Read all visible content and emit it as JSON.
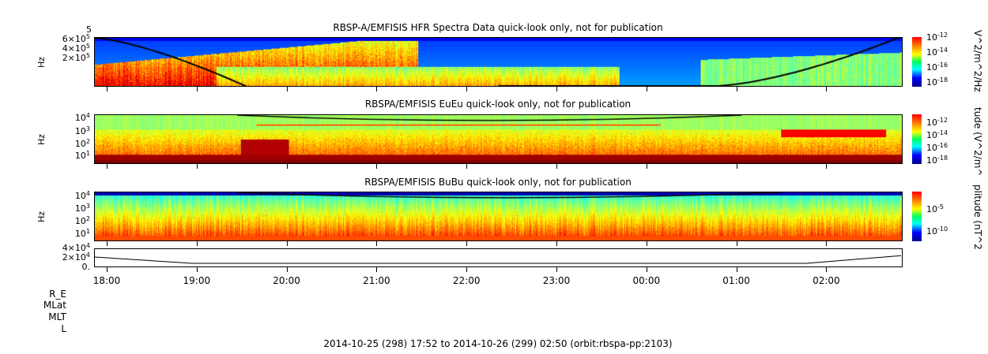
{
  "chart_data": [
    {
      "type": "heatmap",
      "title": "RBSP-A/EMFISIS  HFR Spectra Data quick-look only, not for publication",
      "ylabel": "Hz",
      "y_ticks": [
        "6×10^5",
        "4×10^5",
        "2×10^5"
      ],
      "y_top_tick": "5",
      "colorbar_label": "V^2/m^2/Hz",
      "colorbar_ticks": [
        "10^-12",
        "10^-14",
        "10^-16",
        "10^-18"
      ],
      "colormap": "jet"
    },
    {
      "type": "heatmap",
      "title": "RBSPA/EMFISIS  EuEu quick-look only, not for publication",
      "ylabel": "Hz",
      "y_ticks": [
        "10^4",
        "10^3",
        "10^2",
        "10^1"
      ],
      "colorbar_label": "tude (V^2/m^",
      "colorbar_ticks": [
        "10^-12",
        "10^-14",
        "10^-16",
        "10^-18"
      ],
      "colormap": "jet"
    },
    {
      "type": "heatmap",
      "title": "RBSPA/EMFISIS  BuBu quick-look only, not for publication",
      "ylabel": "Hz",
      "y_ticks": [
        "10^4",
        "10^3",
        "10^2",
        "10^1"
      ],
      "colorbar_label": "plitude (nT^2",
      "colorbar_ticks": [
        "10^-5",
        "10^-10"
      ],
      "colormap": "jet"
    },
    {
      "type": "line",
      "y_ticks": [
        "4×10^4",
        "2×10^4",
        "0."
      ]
    }
  ],
  "x_ticks": [
    "18:00",
    "19:00",
    "20:00",
    "21:00",
    "22:00",
    "23:00",
    "00:00",
    "01:00",
    "02:00"
  ],
  "ephemeris_labels": [
    "R_E",
    "MLat",
    "MLT",
    "L"
  ],
  "footer": "2014-10-25 (298) 17:52 to 2014-10-26 (299) 02:50 (orbit:rbspa-pp:2103)"
}
